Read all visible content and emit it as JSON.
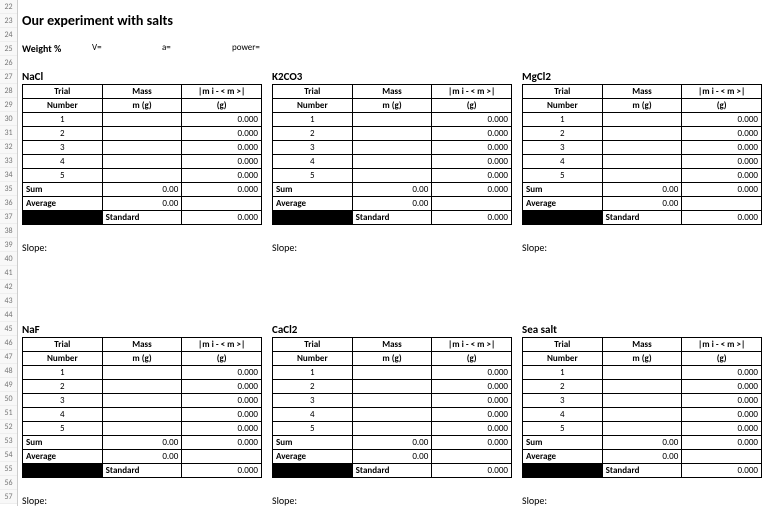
{
  "rownums": [
    22,
    23,
    24,
    25,
    26,
    27,
    28,
    29,
    30,
    31,
    32,
    33,
    34,
    35,
    36,
    37,
    38,
    39,
    40,
    41,
    42,
    43,
    44,
    45,
    46,
    47,
    48,
    49,
    50,
    51,
    52,
    53,
    54,
    55,
    56,
    57
  ],
  "title": "Our experiment with salts",
  "weight": {
    "label": "Weight %",
    "v": "V=",
    "a": "a=",
    "power": "power="
  },
  "headers": {
    "trial": "Trial",
    "number": "Number",
    "mass": "Mass",
    "massu": "m (g)",
    "dev": "|m i - < m >|",
    "devu": "(g)",
    "sum": "Sum",
    "avg": "Average",
    "std": "Standard",
    "slope": "Slope:"
  },
  "zero3": "0.000",
  "zero2": "0.00",
  "salts_top": [
    {
      "name": "NaCl"
    },
    {
      "name": "K2CO3"
    },
    {
      "name": "MgCl2"
    }
  ],
  "salts_bot": [
    {
      "name": "NaF"
    },
    {
      "name": "CaCl2"
    },
    {
      "name": "Sea salt"
    }
  ],
  "trials": [
    1,
    2,
    3,
    4,
    5
  ],
  "colors": {
    "black": "#000000",
    "bg": "#ffffff",
    "grid": "#cccccc"
  }
}
